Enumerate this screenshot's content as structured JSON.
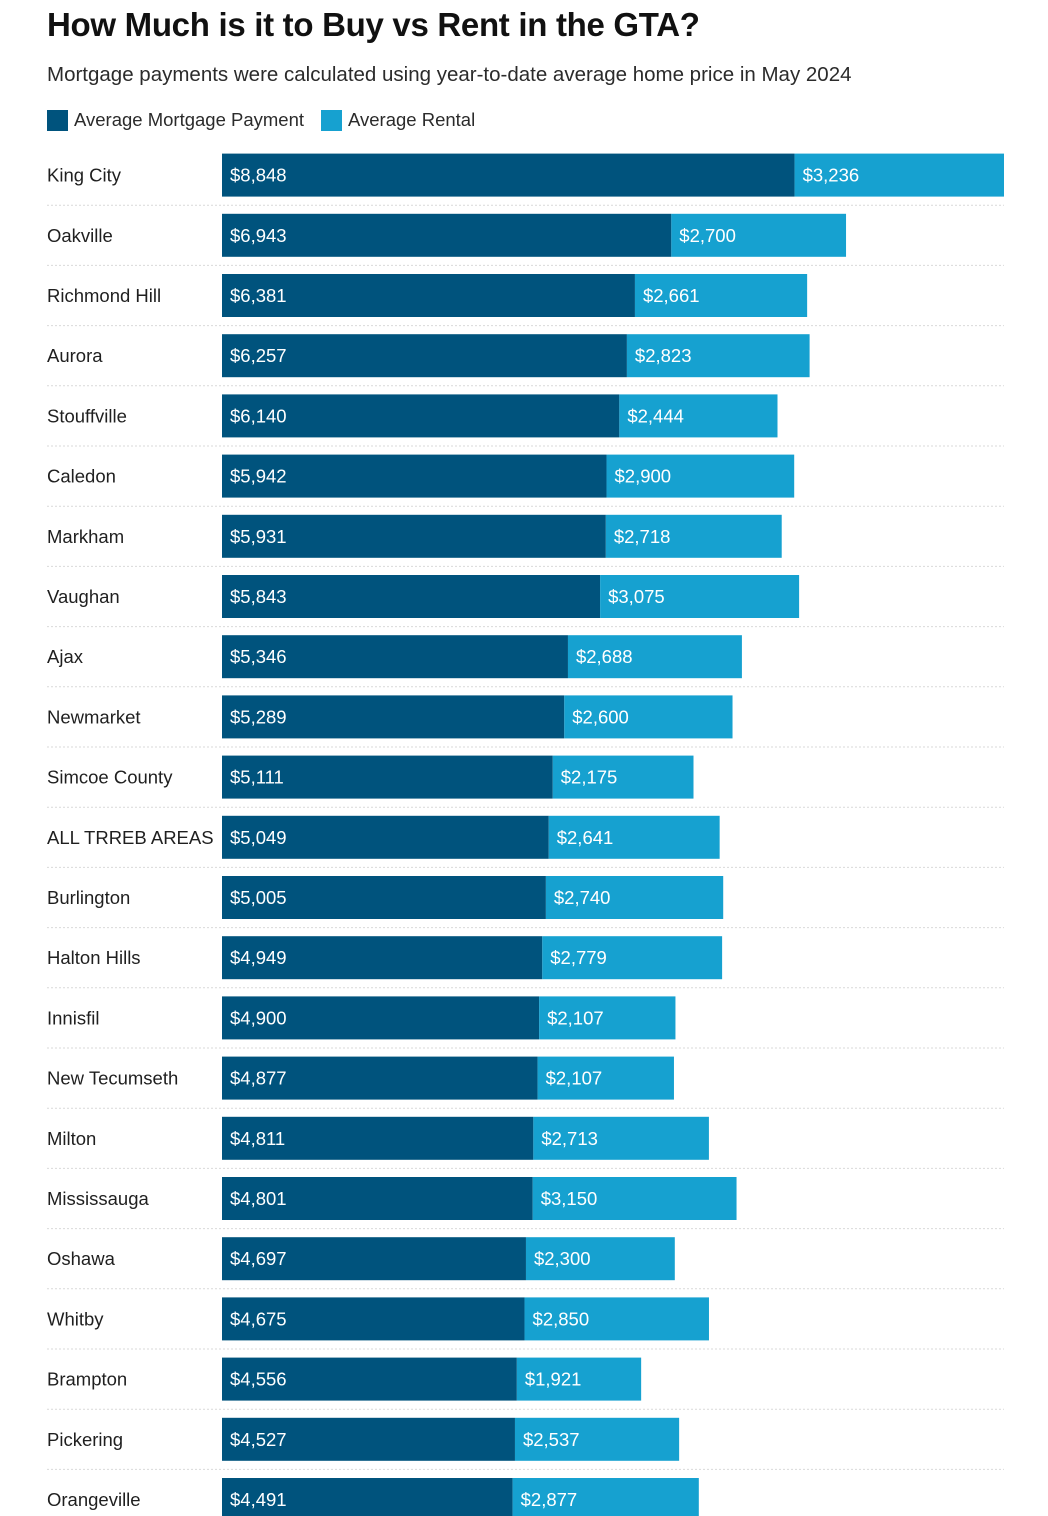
{
  "colors": {
    "mortgage": "#00537d",
    "rental": "#16a1d0",
    "separator": "#d9d9d9"
  },
  "chart_data": {
    "type": "bar",
    "orientation": "horizontal",
    "stacked": true,
    "title": "How Much is it to Buy vs Rent in the GTA?",
    "subtitle": "Mortgage payments were calculated using year-to-date average home price in May 2024",
    "legend_position": "top-left",
    "grid": false,
    "xlim": [
      0,
      12084
    ],
    "categories": [
      "King City",
      "Oakville",
      "Richmond Hill",
      "Aurora",
      "Stouffville",
      "Caledon",
      "Markham",
      "Vaughan",
      "Ajax",
      "Newmarket",
      "Simcoe County",
      "ALL TRREB AREAS",
      "Burlington",
      "Halton Hills",
      "Innisfil",
      "New Tecumseth",
      "Milton",
      "Mississauga",
      "Oshawa",
      "Whitby",
      "Brampton",
      "Pickering",
      "Orangeville"
    ],
    "series": [
      {
        "name": "Average Mortgage Payment",
        "values": [
          8848,
          6943,
          6381,
          6257,
          6140,
          5942,
          5931,
          5843,
          5346,
          5289,
          5111,
          5049,
          5005,
          4949,
          4900,
          4877,
          4811,
          4801,
          4697,
          4675,
          4556,
          4527,
          4491
        ],
        "labels": [
          "$8,848",
          "$6,943",
          "$6,381",
          "$6,257",
          "$6,140",
          "$5,942",
          "$5,931",
          "$5,843",
          "$5,346",
          "$5,289",
          "$5,111",
          "$5,049",
          "$5,005",
          "$4,949",
          "$4,900",
          "$4,877",
          "$4,811",
          "$4,801",
          "$4,697",
          "$4,675",
          "$4,556",
          "$4,527",
          "$4,491"
        ]
      },
      {
        "name": "Average Rental",
        "values": [
          3236,
          2700,
          2661,
          2823,
          2444,
          2900,
          2718,
          3075,
          2688,
          2600,
          2175,
          2641,
          2740,
          2779,
          2107,
          2107,
          2713,
          3150,
          2300,
          2850,
          1921,
          2537,
          2877
        ],
        "labels": [
          "$3,236",
          "$2,700",
          "$2,661",
          "$2,823",
          "$2,444",
          "$2,900",
          "$2,718",
          "$3,075",
          "$2,688",
          "$2,600",
          "$2,175",
          "$2,641",
          "$2,740",
          "$2,779",
          "$2,107",
          "$2,107",
          "$2,713",
          "$3,150",
          "$2,300",
          "$2,850",
          "$1,921",
          "$2,537",
          "$2,877"
        ]
      }
    ]
  }
}
